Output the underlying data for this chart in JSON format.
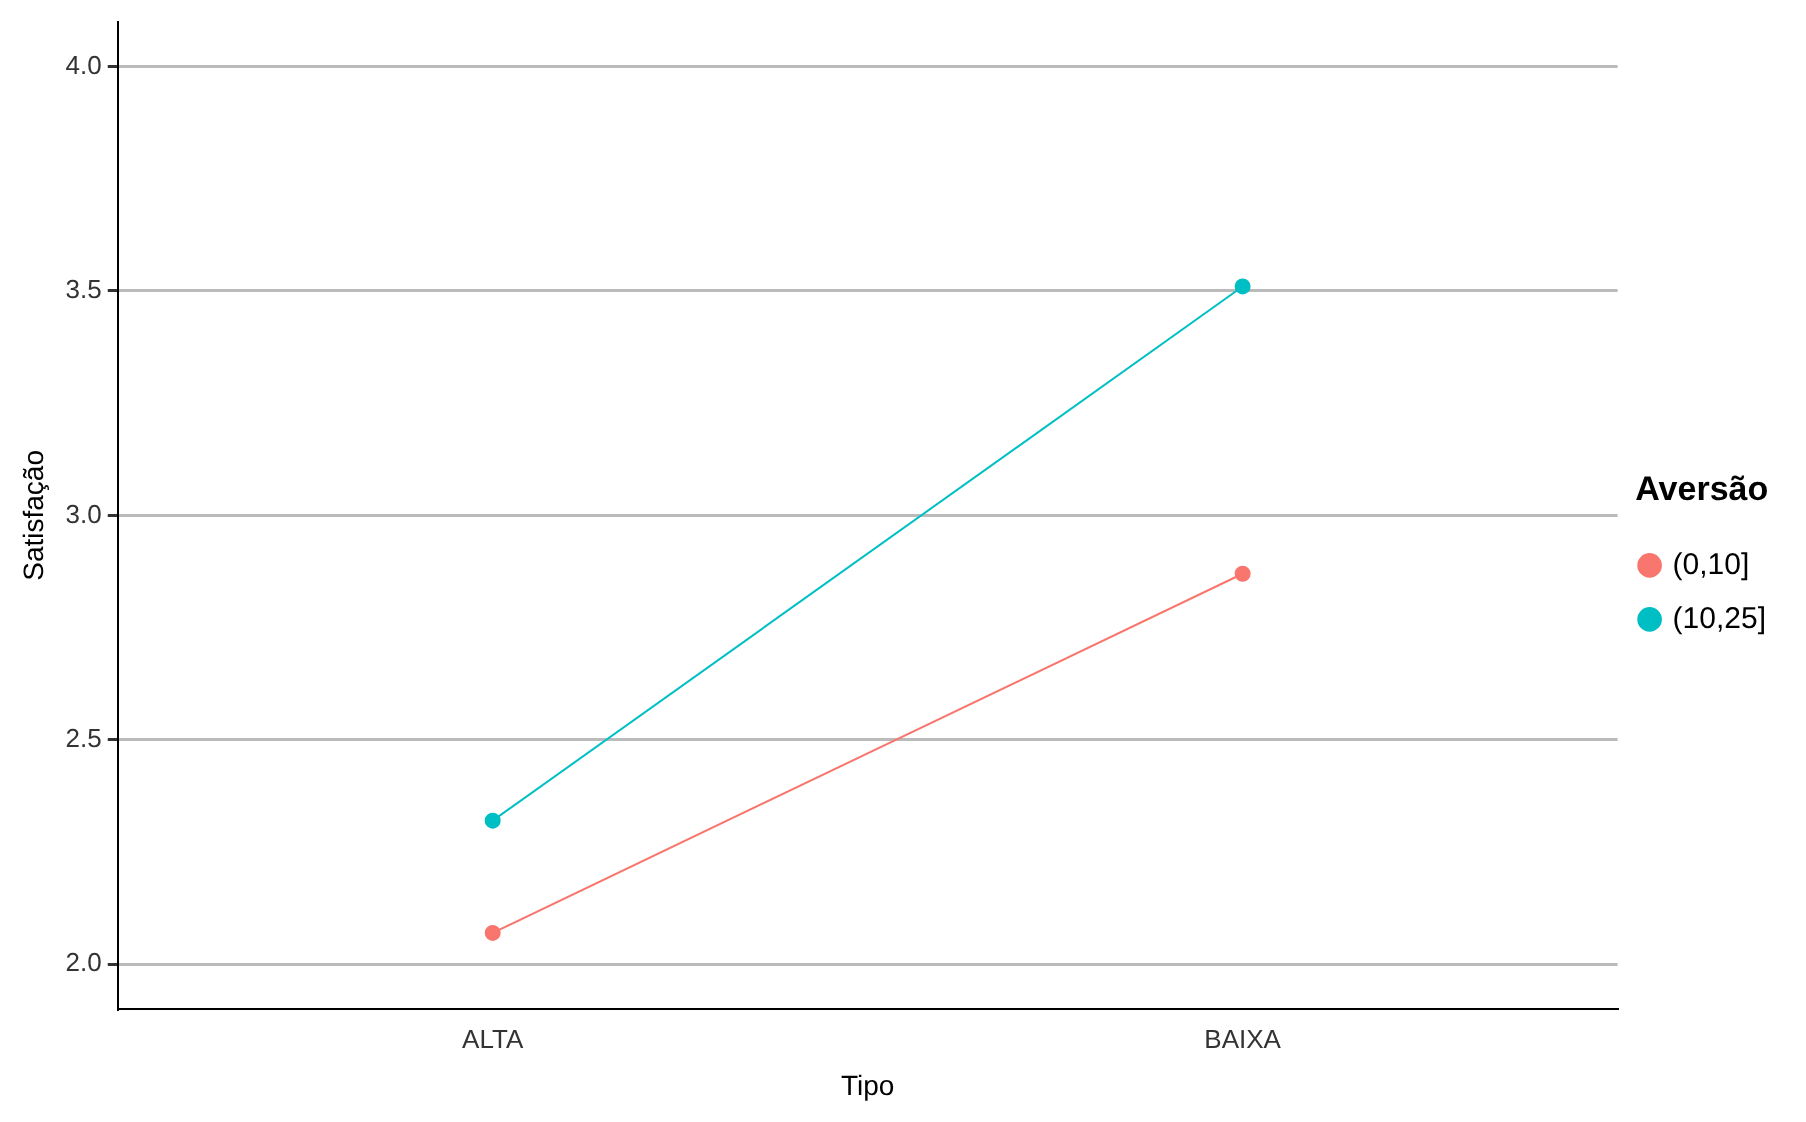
{
  "chart_data": {
    "type": "line",
    "xlabel": "Tipo",
    "ylabel": "Satisfação",
    "legend_title": "Aversão",
    "categories": [
      "ALTA",
      "BAIXA"
    ],
    "series": [
      {
        "name": "(0,10]",
        "color": "#f8766d",
        "values": [
          2.07,
          2.87
        ]
      },
      {
        "name": "(10,25]",
        "color": "#00bfc4",
        "values": [
          2.32,
          3.51
        ]
      }
    ],
    "ylim": [
      1.9,
      4.1
    ],
    "yticks": [
      {
        "value": 2,
        "label": "2.0"
      },
      {
        "value": 2.5,
        "label": "2.5"
      },
      {
        "value": 3,
        "label": "3.0"
      },
      {
        "value": 3.5,
        "label": "3.5"
      },
      {
        "value": 4,
        "label": "4.0"
      }
    ],
    "grid": "y",
    "legend": "right",
    "marker": "circle"
  }
}
